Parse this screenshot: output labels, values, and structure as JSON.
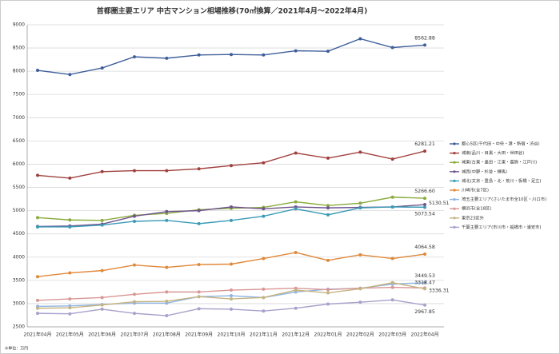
{
  "chart_data": {
    "type": "line",
    "title": "首都圏主要エリア 中古マンション相場推移(70㎡換算／2021年4月～2022年4月)",
    "note": "※単位：万円",
    "categories": [
      "2021年04月",
      "2021年05月",
      "2021年06月",
      "2021年07月",
      "2021年08月",
      "2021年09月",
      "2021年10月",
      "2021年11月",
      "2021年12月",
      "2022年01月",
      "2022年02月",
      "2022年03月",
      "2022年04月"
    ],
    "ylim": [
      2500,
      9000
    ],
    "yticks": [
      2500,
      3000,
      3500,
      4000,
      4500,
      5000,
      5500,
      6000,
      6500,
      7000,
      7500,
      8000,
      8500,
      9000
    ],
    "grid": true,
    "series": [
      {
        "name": "都心5区(千代田・中央・港・新宿・渋谷)",
        "color": "#3f5f9a",
        "values": [
          8019,
          7930,
          8070,
          8310,
          8280,
          8350,
          8360,
          8350,
          8440,
          8430,
          8700,
          8510,
          8562.88
        ],
        "value_labels": [
          null,
          null,
          null,
          null,
          null,
          null,
          null,
          null,
          null,
          null,
          null,
          null,
          "8562.88"
        ]
      },
      {
        "name": "城南(品川・目黒・大田・世田谷)",
        "color": "#a0403c",
        "values": [
          5760,
          5700,
          5840,
          5860,
          5860,
          5900,
          5970,
          6030,
          6240,
          6130,
          6260,
          6110,
          6281.21
        ],
        "value_labels": [
          null,
          null,
          null,
          null,
          null,
          null,
          null,
          null,
          null,
          null,
          null,
          null,
          "6281.21"
        ]
      },
      {
        "name": "城東(台東・墨田・江東・葛飾・江戸川)",
        "color": "#8aab3c",
        "values": [
          4850,
          4800,
          4790,
          4900,
          4940,
          5020,
          5050,
          5070,
          5190,
          5110,
          5160,
          5290,
          5266.6
        ],
        "value_labels": [
          null,
          null,
          null,
          null,
          null,
          null,
          null,
          null,
          null,
          null,
          null,
          null,
          "5266.60"
        ]
      },
      {
        "name": "城西(中野・杉並・練馬)",
        "color": "#6e548e",
        "values": [
          4660,
          4670,
          4710,
          4880,
          4980,
          5000,
          5080,
          5040,
          5080,
          5060,
          5070,
          5080,
          5130.51
        ],
        "value_labels": [
          null,
          null,
          null,
          null,
          null,
          null,
          null,
          null,
          null,
          null,
          null,
          null,
          "5130.51"
        ]
      },
      {
        "name": "城北(文京・豊島・北・荒川・板橋・足立)",
        "color": "#3a9bb5",
        "values": [
          4650,
          4650,
          4690,
          4770,
          4790,
          4720,
          4790,
          4880,
          5040,
          4910,
          5060,
          5080,
          5073.54
        ],
        "value_labels": [
          null,
          null,
          null,
          null,
          null,
          null,
          null,
          null,
          null,
          null,
          null,
          null,
          "5073.54"
        ]
      },
      {
        "name": "川崎市(全7区)",
        "color": "#e0883a",
        "values": [
          3580,
          3660,
          3710,
          3830,
          3780,
          3840,
          3850,
          3970,
          4100,
          3930,
          4050,
          3970,
          4064.58
        ],
        "value_labels": [
          null,
          null,
          null,
          null,
          null,
          null,
          null,
          null,
          null,
          null,
          null,
          null,
          "4064.58"
        ]
      },
      {
        "name": "埼玉主要エリア(さいたま市全10区・川口市)",
        "color": "#8eb4e3",
        "values": [
          2940,
          2950,
          2980,
          3010,
          3010,
          3150,
          3170,
          3130,
          3250,
          3310,
          3330,
          3420,
          3449.53
        ],
        "value_labels": [
          null,
          null,
          null,
          null,
          null,
          null,
          null,
          null,
          null,
          null,
          null,
          null,
          "3449.53"
        ]
      },
      {
        "name": "横浜市(全18区)",
        "color": "#d99694",
        "values": [
          3070,
          3100,
          3130,
          3200,
          3250,
          3250,
          3290,
          3310,
          3330,
          3300,
          3330,
          3350,
          3336.31
        ],
        "value_labels": [
          null,
          null,
          null,
          null,
          null,
          null,
          null,
          null,
          null,
          null,
          null,
          null,
          "3336.31"
        ]
      },
      {
        "name": "東京23区外",
        "color": "#c5b380",
        "values": [
          2900,
          2910,
          2970,
          3040,
          3050,
          3150,
          3100,
          3130,
          3290,
          3230,
          3320,
          3450,
          3318.47
        ],
        "value_labels": [
          null,
          null,
          null,
          null,
          null,
          null,
          null,
          null,
          null,
          null,
          null,
          null,
          "3318.47"
        ]
      },
      {
        "name": "千葉主要エリア(市川市・船橋市・浦安市)",
        "color": "#a9a0cb",
        "values": [
          2790,
          2780,
          2880,
          2790,
          2740,
          2890,
          2880,
          2840,
          2900,
          2990,
          3030,
          3080,
          2967.85
        ],
        "value_labels": [
          null,
          null,
          null,
          null,
          null,
          null,
          null,
          null,
          null,
          null,
          null,
          null,
          "2967.85"
        ]
      }
    ]
  }
}
